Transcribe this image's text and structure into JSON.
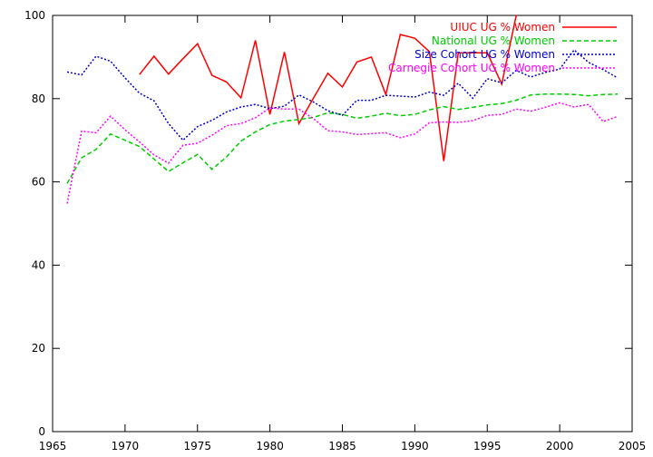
{
  "chart_data": {
    "type": "line",
    "title": "",
    "xlabel": "",
    "ylabel": "",
    "xlim": [
      1965,
      2005
    ],
    "ylim": [
      0,
      100
    ],
    "xticks": [
      1965,
      1970,
      1975,
      1980,
      1985,
      1990,
      1995,
      2000,
      2005
    ],
    "yticks": [
      0,
      20,
      40,
      60,
      80,
      100
    ],
    "grid": false,
    "legend": "top-right",
    "series": [
      {
        "name": "UIUC UG % Women",
        "color": "#ff0000",
        "dash": "solid",
        "x": [
          1971,
          1972,
          1973,
          1974,
          1975,
          1976,
          1977,
          1978,
          1979,
          1980,
          1981,
          1982,
          1983,
          1984,
          1985,
          1986,
          1987,
          1988,
          1989,
          1990,
          1991,
          1992,
          1993,
          1994,
          1995,
          1996,
          1997
        ],
        "y": [
          85.8,
          90.2,
          85.9,
          89.6,
          93.2,
          85.6,
          84.0,
          80.2,
          94.0,
          76.2,
          91.2,
          74.0,
          80.1,
          86.1,
          82.8,
          88.8,
          90.0,
          81.0,
          95.4,
          94.5,
          91.3,
          65.0,
          91.0,
          91.0,
          91.0,
          83.5,
          100.0
        ]
      },
      {
        "name": "National UG % Women",
        "color": "#00cc00",
        "dash": "dashed",
        "x": [
          1966,
          1967,
          1968,
          1969,
          1970,
          1971,
          1972,
          1973,
          1974,
          1975,
          1976,
          1977,
          1978,
          1979,
          1980,
          1981,
          1982,
          1983,
          1984,
          1985,
          1986,
          1987,
          1988,
          1989,
          1990,
          1991,
          1992,
          1993,
          1994,
          1995,
          1996,
          1997,
          1998,
          1999,
          2000,
          2001,
          2002,
          2003,
          2004
        ],
        "y": [
          59.6,
          65.8,
          67.8,
          71.5,
          70.0,
          68.5,
          65.5,
          62.5,
          64.6,
          66.6,
          63.0,
          66.0,
          69.8,
          72.0,
          73.8,
          74.6,
          75.0,
          75.5,
          76.6,
          76.2,
          75.3,
          75.8,
          76.5,
          75.9,
          76.2,
          77.3,
          78.1,
          77.4,
          77.9,
          78.5,
          78.8,
          79.6,
          80.9,
          81.1,
          81.1,
          81.0,
          80.7,
          81.0,
          81.1
        ]
      },
      {
        "name": "Size Cohort UG % Women",
        "color": "#0000cc",
        "dash": "dotted",
        "x": [
          1966,
          1967,
          1968,
          1969,
          1970,
          1971,
          1972,
          1973,
          1974,
          1975,
          1976,
          1977,
          1978,
          1979,
          1980,
          1981,
          1982,
          1983,
          1984,
          1985,
          1986,
          1987,
          1988,
          1989,
          1990,
          1991,
          1992,
          1993,
          1994,
          1995,
          1996,
          1997,
          1998,
          1999,
          2000,
          2001,
          2002,
          2003,
          2004
        ],
        "y": [
          86.4,
          85.7,
          90.2,
          89.0,
          85.0,
          81.3,
          79.5,
          74.0,
          70.0,
          73.3,
          74.8,
          76.8,
          78.0,
          78.6,
          77.6,
          78.2,
          80.9,
          79.2,
          77.1,
          76.0,
          79.6,
          79.6,
          80.8,
          80.6,
          80.4,
          81.6,
          80.8,
          83.7,
          80.1,
          84.8,
          83.8,
          86.8,
          85.2,
          86.3,
          87.1,
          91.7,
          88.7,
          87.0,
          85.0
        ]
      },
      {
        "name": "Carnegie Cohort UG % Women",
        "color": "#ff00ff",
        "dash": "dotted",
        "x": [
          1966,
          1967,
          1968,
          1969,
          1970,
          1971,
          1972,
          1973,
          1974,
          1975,
          1976,
          1977,
          1978,
          1979,
          1980,
          1981,
          1982,
          1983,
          1984,
          1985,
          1986,
          1987,
          1988,
          1989,
          1990,
          1991,
          1992,
          1993,
          1994,
          1995,
          1996,
          1997,
          1998,
          1999,
          2000,
          2001,
          2002,
          2003,
          2004
        ],
        "y": [
          54.8,
          72.2,
          71.8,
          75.8,
          72.5,
          69.6,
          66.5,
          64.5,
          68.8,
          69.3,
          71.2,
          73.5,
          74.0,
          75.4,
          77.8,
          77.5,
          77.5,
          75.2,
          72.3,
          72.0,
          71.4,
          71.6,
          71.8,
          70.6,
          71.5,
          74.2,
          74.4,
          74.3,
          74.7,
          76.0,
          76.2,
          77.5,
          77.0,
          77.9,
          79.0,
          78.0,
          78.6,
          74.5,
          75.7
        ]
      }
    ]
  }
}
